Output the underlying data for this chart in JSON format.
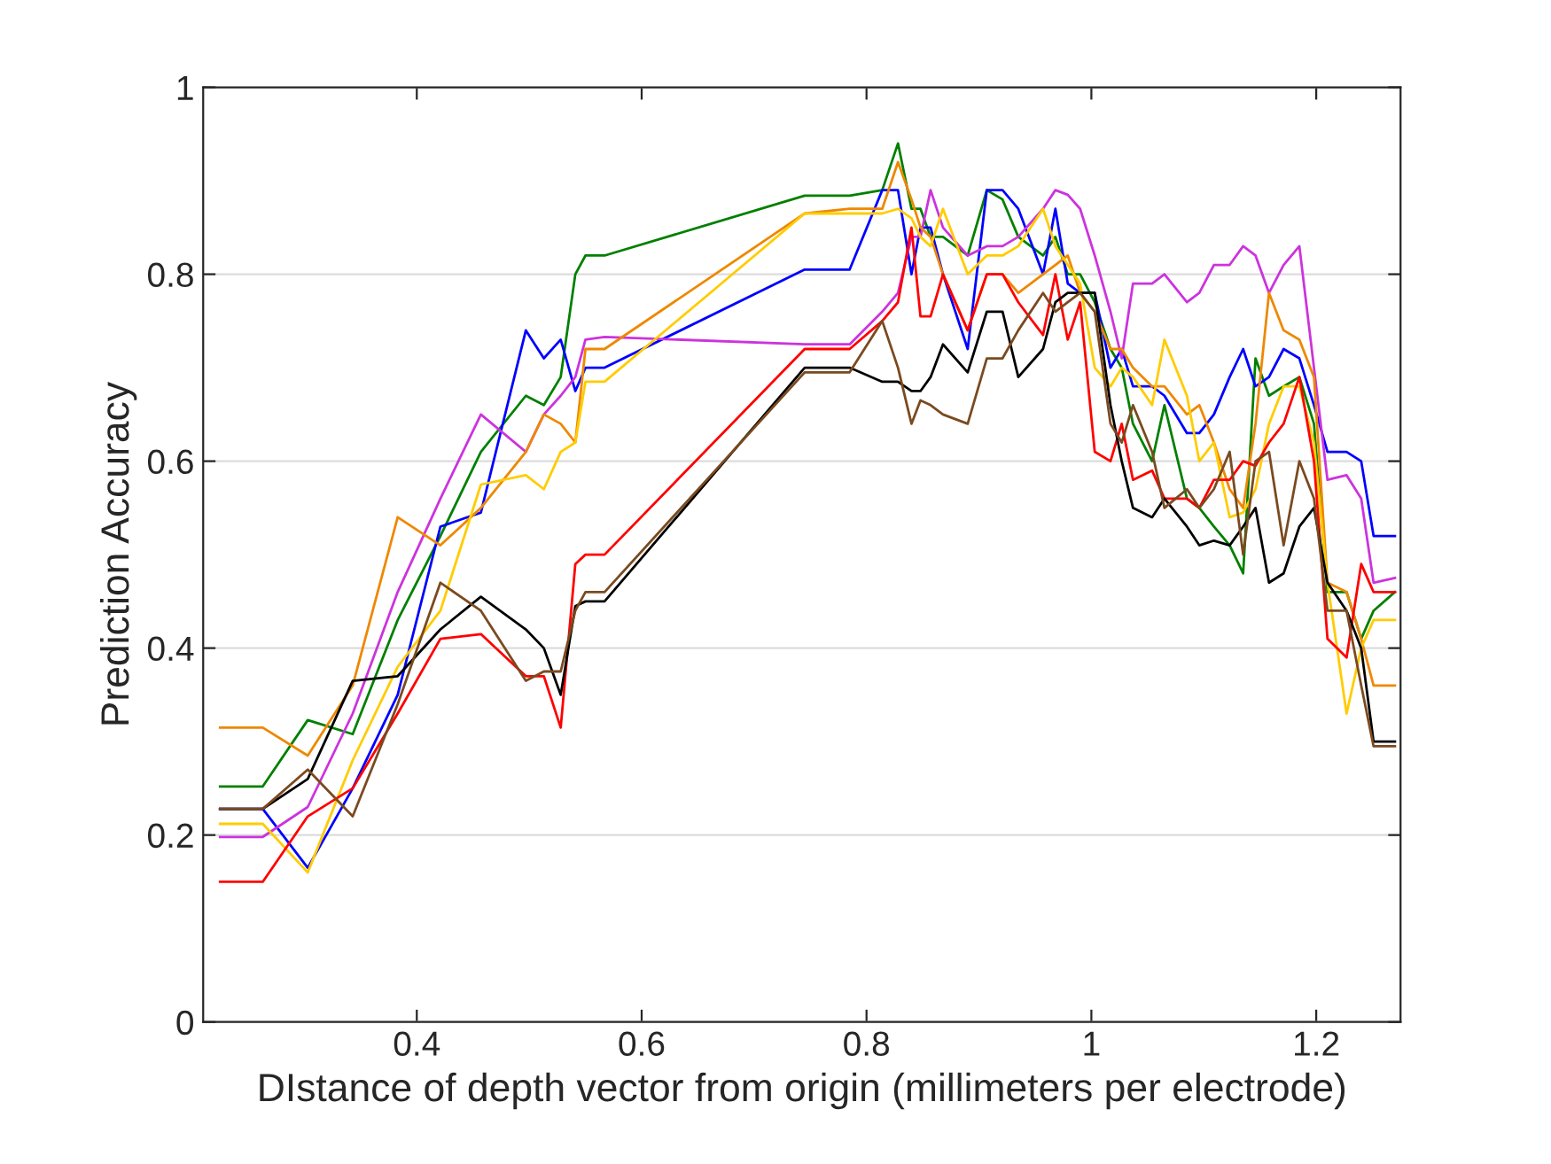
{
  "chart_data": {
    "type": "line",
    "xlabel": "DIstance of depth vector from origin (millimeters per electrode)",
    "ylabel": "Prediction Accuracy",
    "x": [
      0.225,
      0.263,
      0.303,
      0.343,
      0.383,
      0.421,
      0.457,
      0.497,
      0.513,
      0.528,
      0.541,
      0.55,
      0.567,
      0.745,
      0.785,
      0.814,
      0.828,
      0.84,
      0.848,
      0.857,
      0.868,
      0.89,
      0.907,
      0.921,
      0.935,
      0.957,
      0.968,
      0.979,
      0.99,
      1.003,
      1.017,
      1.027,
      1.037,
      1.054,
      1.065,
      1.085,
      1.096,
      1.109,
      1.123,
      1.135,
      1.146,
      1.158,
      1.171,
      1.185,
      1.198,
      1.21,
      1.227,
      1.24,
      1.251,
      1.27
    ],
    "series": [
      {
        "color": "#008000",
        "values": [
          0.252,
          0.252,
          0.323,
          0.308,
          0.43,
          0.52,
          0.61,
          0.67,
          0.66,
          0.69,
          0.8,
          0.82,
          0.82,
          0.884,
          0.884,
          0.89,
          0.94,
          0.87,
          0.87,
          0.84,
          0.84,
          0.82,
          0.89,
          0.88,
          0.84,
          0.82,
          0.84,
          0.8,
          0.8,
          0.77,
          0.72,
          0.7,
          0.64,
          0.6,
          0.66,
          0.56,
          0.55,
          0.53,
          0.51,
          0.48,
          0.71,
          0.67,
          0.68,
          0.69,
          0.64,
          0.46,
          0.46,
          0.41,
          0.44,
          0.46
        ]
      },
      {
        "color": "#0000ff",
        "values": [
          0.228,
          0.228,
          0.165,
          0.25,
          0.35,
          0.53,
          0.545,
          0.74,
          0.71,
          0.73,
          0.675,
          0.7,
          0.7,
          0.805,
          0.805,
          0.89,
          0.89,
          0.8,
          0.85,
          0.85,
          0.8,
          0.72,
          0.89,
          0.89,
          0.87,
          0.8,
          0.87,
          0.79,
          0.78,
          0.78,
          0.7,
          0.72,
          0.68,
          0.68,
          0.67,
          0.63,
          0.63,
          0.65,
          0.69,
          0.72,
          0.68,
          0.69,
          0.72,
          0.71,
          0.66,
          0.61,
          0.61,
          0.6,
          0.52,
          0.52
        ]
      },
      {
        "color": "#cc33dd",
        "values": [
          0.198,
          0.198,
          0.23,
          0.33,
          0.46,
          0.56,
          0.65,
          0.61,
          0.65,
          0.67,
          0.69,
          0.73,
          0.733,
          0.725,
          0.725,
          0.76,
          0.78,
          0.84,
          0.84,
          0.89,
          0.85,
          0.82,
          0.83,
          0.83,
          0.84,
          0.87,
          0.89,
          0.885,
          0.87,
          0.82,
          0.76,
          0.71,
          0.79,
          0.79,
          0.8,
          0.77,
          0.78,
          0.81,
          0.81,
          0.83,
          0.82,
          0.78,
          0.81,
          0.83,
          0.7,
          0.58,
          0.585,
          0.56,
          0.47,
          0.475
        ]
      },
      {
        "color": "#ee8800",
        "values": [
          0.315,
          0.315,
          0.285,
          0.36,
          0.54,
          0.51,
          0.55,
          0.61,
          0.65,
          0.64,
          0.62,
          0.72,
          0.72,
          0.865,
          0.87,
          0.87,
          0.92,
          0.88,
          0.85,
          0.84,
          0.8,
          0.74,
          0.8,
          0.8,
          0.78,
          0.8,
          0.81,
          0.82,
          0.78,
          0.76,
          0.72,
          0.72,
          0.7,
          0.68,
          0.68,
          0.65,
          0.66,
          0.62,
          0.57,
          0.55,
          0.64,
          0.78,
          0.74,
          0.73,
          0.69,
          0.47,
          0.46,
          0.41,
          0.36,
          0.36
        ]
      },
      {
        "color": "#ffcc00",
        "values": [
          0.212,
          0.212,
          0.16,
          0.28,
          0.38,
          0.44,
          0.575,
          0.585,
          0.57,
          0.61,
          0.62,
          0.685,
          0.685,
          0.865,
          0.865,
          0.865,
          0.87,
          0.86,
          0.84,
          0.83,
          0.87,
          0.8,
          0.82,
          0.82,
          0.83,
          0.87,
          0.83,
          0.81,
          0.79,
          0.7,
          0.68,
          0.7,
          0.69,
          0.66,
          0.73,
          0.67,
          0.6,
          0.62,
          0.54,
          0.545,
          0.57,
          0.64,
          0.68,
          0.68,
          0.62,
          0.47,
          0.33,
          0.4,
          0.43,
          0.43
        ]
      },
      {
        "color": "#ff0000",
        "values": [
          0.15,
          0.15,
          0.22,
          0.25,
          0.33,
          0.41,
          0.415,
          0.37,
          0.37,
          0.315,
          0.49,
          0.5,
          0.5,
          0.72,
          0.72,
          0.75,
          0.77,
          0.85,
          0.755,
          0.755,
          0.8,
          0.74,
          0.8,
          0.8,
          0.77,
          0.735,
          0.8,
          0.73,
          0.77,
          0.61,
          0.6,
          0.64,
          0.58,
          0.59,
          0.56,
          0.56,
          0.55,
          0.58,
          0.58,
          0.6,
          0.595,
          0.62,
          0.64,
          0.69,
          0.6,
          0.41,
          0.39,
          0.49,
          0.46,
          0.46
        ]
      },
      {
        "color": "#000000",
        "values": [
          0.228,
          0.228,
          0.26,
          0.365,
          0.37,
          0.42,
          0.455,
          0.42,
          0.4,
          0.35,
          0.445,
          0.45,
          0.45,
          0.7,
          0.7,
          0.685,
          0.685,
          0.675,
          0.675,
          0.69,
          0.725,
          0.695,
          0.76,
          0.76,
          0.69,
          0.72,
          0.77,
          0.78,
          0.78,
          0.78,
          0.66,
          0.6,
          0.55,
          0.54,
          0.56,
          0.53,
          0.51,
          0.515,
          0.51,
          0.53,
          0.55,
          0.47,
          0.48,
          0.53,
          0.55,
          0.47,
          0.44,
          0.4,
          0.3,
          0.3
        ]
      },
      {
        "color": "#7a4a1f",
        "values": [
          0.228,
          0.228,
          0.27,
          0.22,
          0.34,
          0.47,
          0.44,
          0.365,
          0.375,
          0.375,
          0.44,
          0.46,
          0.46,
          0.695,
          0.695,
          0.75,
          0.7,
          0.64,
          0.665,
          0.66,
          0.65,
          0.64,
          0.71,
          0.71,
          0.74,
          0.78,
          0.76,
          0.77,
          0.78,
          0.76,
          0.64,
          0.62,
          0.66,
          0.61,
          0.55,
          0.57,
          0.55,
          0.57,
          0.61,
          0.5,
          0.6,
          0.61,
          0.51,
          0.6,
          0.56,
          0.44,
          0.44,
          0.36,
          0.295,
          0.295
        ]
      }
    ],
    "xlim": [
      0.21,
      1.275
    ],
    "xticks": [
      0.4,
      0.6,
      0.8,
      1,
      1.2
    ],
    "ylim": [
      0,
      1
    ],
    "yticks": [
      0,
      0.2,
      0.4,
      0.6,
      0.8,
      1
    ],
    "grid": "y",
    "line_style": "solid",
    "marker": "none"
  }
}
